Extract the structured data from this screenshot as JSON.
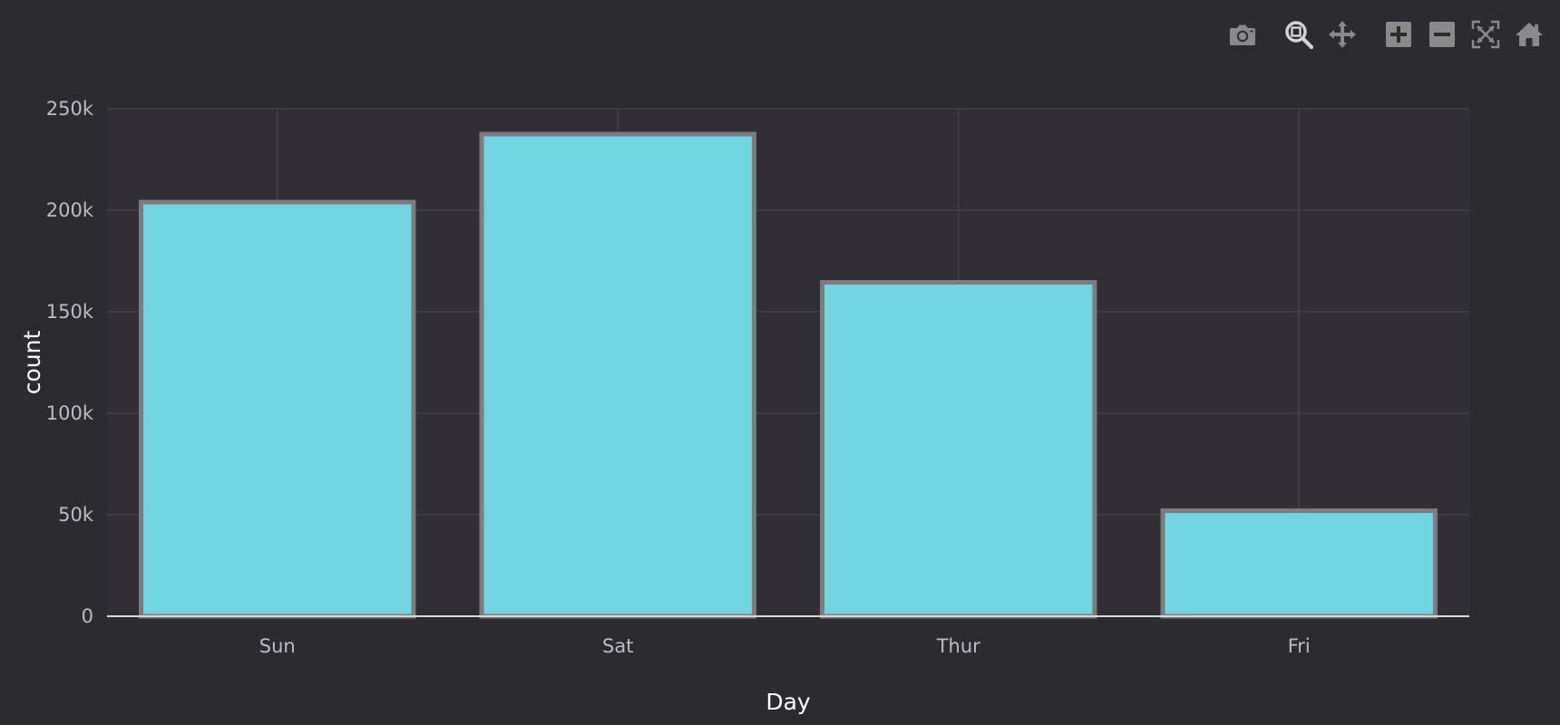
{
  "toolbar": {
    "buttons": [
      {
        "name": "camera-icon",
        "label": "Download plot as a png"
      },
      {
        "name": "zoom-icon",
        "label": "Zoom"
      },
      {
        "name": "pan-icon",
        "label": "Pan"
      },
      {
        "name": "zoom-in-icon",
        "label": "Zoom in"
      },
      {
        "name": "zoom-out-icon",
        "label": "Zoom out"
      },
      {
        "name": "autoscale-icon",
        "label": "Autoscale"
      },
      {
        "name": "home-icon",
        "label": "Reset axes"
      }
    ]
  },
  "colors": {
    "background": "#2c2b30",
    "plot_background": "#312f35",
    "grid": "#434248",
    "bar_fill": "#72d5e2",
    "bar_stroke": "#7d7d7f",
    "zero_line": "#d9d9d9",
    "icon": "#8a8a8a",
    "icon_active": "#d4d4d4"
  },
  "chart_data": {
    "type": "bar",
    "categories": [
      "Sun",
      "Sat",
      "Thur",
      "Fri"
    ],
    "values": [
      204000,
      237500,
      164500,
      52000
    ],
    "xlabel": "Day",
    "ylabel": "count",
    "ylim": [
      0,
      250000
    ],
    "yticks": [
      0,
      50000,
      100000,
      150000,
      200000,
      250000
    ],
    "ytick_labels": [
      "0",
      "50k",
      "100k",
      "150k",
      "200k",
      "250k"
    ],
    "grid": true,
    "legend": false
  }
}
